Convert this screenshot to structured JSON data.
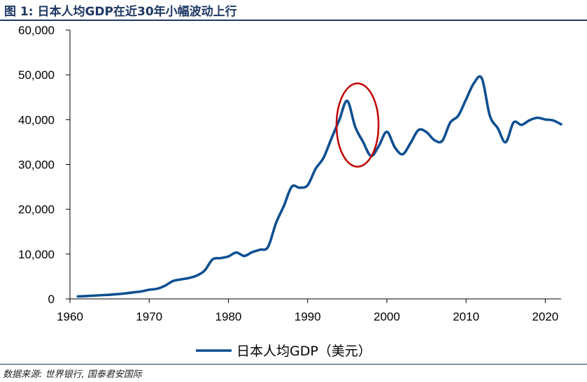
{
  "title": "图 1:  日本人均GDP在近30年小幅波动上行",
  "source": "数据来源: 世界银行, 国泰君安国际",
  "colors": {
    "series": "#0e4f91",
    "annotation": "#c00000",
    "axis": "#000000",
    "title": "#1f3864"
  },
  "chart_data": {
    "type": "line",
    "title": "",
    "xlabel": "",
    "ylabel": "",
    "xlim": [
      1960,
      2022
    ],
    "ylim": [
      0,
      60000
    ],
    "grid": false,
    "legend_position": "bottom",
    "x_ticks": [
      "1960",
      "1970",
      "1980",
      "1990",
      "2000",
      "2010",
      "2020"
    ],
    "y_ticks": [
      "0",
      "10,000",
      "20,000",
      "30,000",
      "40,000",
      "50,000",
      "60,000"
    ],
    "series": [
      {
        "name": "日本人均GDP（美元）",
        "x": [
          1961,
          1962,
          1963,
          1964,
          1965,
          1966,
          1967,
          1968,
          1969,
          1970,
          1971,
          1972,
          1973,
          1974,
          1975,
          1976,
          1977,
          1978,
          1979,
          1980,
          1981,
          1982,
          1983,
          1984,
          1985,
          1986,
          1987,
          1988,
          1989,
          1990,
          1991,
          1992,
          1993,
          1994,
          1995,
          1996,
          1997,
          1998,
          1999,
          2000,
          2001,
          2002,
          2003,
          2004,
          2005,
          2006,
          2007,
          2008,
          2009,
          2010,
          2011,
          2012,
          2013,
          2014,
          2015,
          2016,
          2017,
          2018,
          2019,
          2020,
          2021,
          2022
        ],
        "values": [
          550,
          630,
          720,
          840,
          920,
          1060,
          1230,
          1450,
          1670,
          2040,
          2270,
          2950,
          3990,
          4350,
          4660,
          5200,
          6330,
          8820,
          9100,
          9470,
          10360,
          9580,
          10430,
          10980,
          11580,
          16880,
          20750,
          25050,
          24810,
          25360,
          29010,
          31460,
          35780,
          39930,
          44200,
          38440,
          35040,
          31900,
          34170,
          37300,
          33850,
          32290,
          34810,
          37690,
          37220,
          35430,
          35280,
          39340,
          40860,
          44510,
          48170,
          49180,
          40900,
          38110,
          34960,
          39380,
          38830,
          39850,
          40420,
          40040,
          39830,
          38960
        ]
      }
    ],
    "annotations": [
      {
        "type": "ellipse",
        "x_center": 1996.3,
        "y_center": 38800,
        "x_radius": 2.65,
        "y_radius": 9300
      }
    ]
  }
}
